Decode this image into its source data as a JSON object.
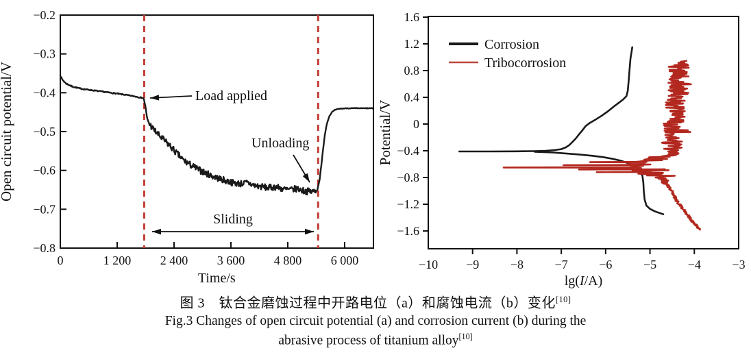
{
  "figure": {
    "caption_zh": "图 3　钛合金磨蚀过程中开路电位（a）和腐蚀电流（b）变化",
    "caption_en_line1": "Fig.3 Changes of open circuit potential (a) and corrosion current (b) during the",
    "caption_en_line2": "abrasive process of titanium alloy",
    "caption_ref": "[10]"
  },
  "colors": {
    "curve_black": "#1a1a1a",
    "curve_red": "#b2281f",
    "dashed_red": "#c23b33",
    "axis": "#111111"
  },
  "chart_data": [
    {
      "id": "a",
      "type": "line",
      "xlabel": "Time/s",
      "ylabel": "Open circuit potential/V",
      "xlim": [
        0,
        6600
      ],
      "ylim": [
        -0.8,
        -0.2
      ],
      "xticks": [
        0,
        1200,
        2400,
        3600,
        4800,
        6000
      ],
      "xtick_labels": [
        "0",
        "1 200",
        "2 400",
        "3 600",
        "4 800",
        "6 000"
      ],
      "yticks": [
        -0.2,
        -0.3,
        -0.4,
        -0.5,
        -0.6,
        -0.7,
        -0.8
      ],
      "ytick_labels": [
        "−0.2",
        "−0.3",
        "−0.4",
        "−0.5",
        "−0.6",
        "−0.7",
        "−0.8"
      ],
      "grid": false,
      "events": {
        "load_applied_time_s": 1770,
        "unloading_time_s": 5440
      },
      "annotations": [
        {
          "name": "load-applied",
          "text": "Load applied"
        },
        {
          "name": "unloading",
          "text": "Unloading"
        },
        {
          "name": "sliding",
          "text": "Sliding"
        }
      ],
      "series": [
        {
          "name": "open-circuit-potential",
          "color": "#1a1a1a",
          "points_time_s_vs_V": [
            [
              0,
              -0.355
            ],
            [
              40,
              -0.366
            ],
            [
              120,
              -0.376
            ],
            [
              250,
              -0.384
            ],
            [
              450,
              -0.39
            ],
            [
              700,
              -0.394
            ],
            [
              1000,
              -0.399
            ],
            [
              1300,
              -0.404
            ],
            [
              1600,
              -0.41
            ],
            [
              1760,
              -0.414
            ],
            [
              1800,
              -0.438
            ],
            [
              1830,
              -0.465
            ],
            [
              1870,
              -0.478
            ],
            [
              1950,
              -0.492
            ],
            [
              2050,
              -0.506
            ],
            [
              2150,
              -0.518
            ],
            [
              2300,
              -0.535
            ],
            [
              2450,
              -0.555
            ],
            [
              2600,
              -0.574
            ],
            [
              2750,
              -0.586
            ],
            [
              2900,
              -0.597
            ],
            [
              3050,
              -0.606
            ],
            [
              3200,
              -0.614
            ],
            [
              3350,
              -0.621
            ],
            [
              3500,
              -0.627
            ],
            [
              3650,
              -0.632
            ],
            [
              3800,
              -0.634
            ],
            [
              3950,
              -0.632
            ],
            [
              4100,
              -0.639
            ],
            [
              4250,
              -0.642
            ],
            [
              4400,
              -0.645
            ],
            [
              4550,
              -0.642
            ],
            [
              4700,
              -0.648
            ],
            [
              4850,
              -0.65
            ],
            [
              5000,
              -0.647
            ],
            [
              5150,
              -0.653
            ],
            [
              5300,
              -0.655
            ],
            [
              5420,
              -0.652
            ],
            [
              5470,
              -0.625
            ],
            [
              5510,
              -0.585
            ],
            [
              5545,
              -0.545
            ],
            [
              5580,
              -0.51
            ],
            [
              5620,
              -0.482
            ],
            [
              5670,
              -0.462
            ],
            [
              5730,
              -0.45
            ],
            [
              5800,
              -0.444
            ],
            [
              5900,
              -0.441
            ],
            [
              6050,
              -0.44
            ],
            [
              6600,
              -0.44
            ]
          ]
        }
      ]
    },
    {
      "id": "b",
      "type": "line",
      "xlabel_parts": {
        "pre": "lg(",
        "var": "I",
        "post": "/A)"
      },
      "ylabel": "Potential/V",
      "xlim": [
        -10,
        -3
      ],
      "ylim": [
        -1.87,
        1.6
      ],
      "xticks": [
        -10,
        -9,
        -8,
        -7,
        -6,
        -5,
        -4,
        -3
      ],
      "xtick_labels": [
        "−10",
        "−9",
        "−8",
        "−7",
        "−6",
        "−5",
        "−4",
        "−3"
      ],
      "yticks": [
        1.6,
        1.2,
        0.8,
        0.4,
        0,
        -0.4,
        -0.8,
        -1.2,
        -1.6
      ],
      "ytick_labels": [
        "1.6",
        "1.2",
        "0.8",
        "0.4",
        "0",
        "−0.4",
        "−0.8",
        "−1.2",
        "−1.6"
      ],
      "grid": false,
      "legend": [
        {
          "label": "Corrosion",
          "color": "#1a1a1a"
        },
        {
          "label": "Tribocorrosion",
          "color": "#b2281f"
        }
      ],
      "series": [
        {
          "name": "corrosion",
          "color": "#1a1a1a",
          "anodic_logI_vs_V": [
            [
              -9.3,
              -0.41
            ],
            [
              -8.6,
              -0.41
            ],
            [
              -8.0,
              -0.408
            ],
            [
              -7.6,
              -0.405
            ],
            [
              -7.35,
              -0.4
            ],
            [
              -7.15,
              -0.39
            ],
            [
              -7.0,
              -0.375
            ],
            [
              -6.9,
              -0.35
            ],
            [
              -6.82,
              -0.315
            ],
            [
              -6.75,
              -0.27
            ],
            [
              -6.68,
              -0.22
            ],
            [
              -6.6,
              -0.155
            ],
            [
              -6.52,
              -0.09
            ],
            [
              -6.45,
              -0.03
            ],
            [
              -6.35,
              0.02
            ],
            [
              -6.22,
              0.07
            ],
            [
              -6.1,
              0.12
            ],
            [
              -5.95,
              0.19
            ],
            [
              -5.82,
              0.26
            ],
            [
              -5.7,
              0.32
            ],
            [
              -5.6,
              0.37
            ],
            [
              -5.53,
              0.42
            ],
            [
              -5.5,
              0.5
            ],
            [
              -5.48,
              0.65
            ],
            [
              -5.46,
              0.82
            ],
            [
              -5.44,
              0.98
            ],
            [
              -5.41,
              1.1
            ],
            [
              -5.4,
              1.15
            ]
          ],
          "cathodic_logI_vs_V": [
            [
              -7.6,
              -0.415
            ],
            [
              -7.2,
              -0.425
            ],
            [
              -6.9,
              -0.44
            ],
            [
              -6.6,
              -0.455
            ],
            [
              -6.3,
              -0.475
            ],
            [
              -6.05,
              -0.495
            ],
            [
              -5.85,
              -0.52
            ],
            [
              -5.65,
              -0.55
            ],
            [
              -5.5,
              -0.585
            ],
            [
              -5.35,
              -0.625
            ],
            [
              -5.25,
              -0.67
            ],
            [
              -5.2,
              -0.72
            ],
            [
              -5.17,
              -0.78
            ],
            [
              -5.15,
              -0.88
            ],
            [
              -5.14,
              -1.0
            ],
            [
              -5.12,
              -1.13
            ],
            [
              -5.08,
              -1.22
            ],
            [
              -5.0,
              -1.27
            ],
            [
              -4.88,
              -1.31
            ],
            [
              -4.7,
              -1.35
            ]
          ]
        },
        {
          "name": "tribocorrosion",
          "color": "#b2281f",
          "ocp_V": -0.65,
          "center_V_vs_logI": [
            [
              -1.58,
              -3.88
            ],
            [
              -1.45,
              -4.05
            ],
            [
              -1.3,
              -4.22
            ],
            [
              -1.15,
              -4.4
            ],
            [
              -1.0,
              -4.52
            ],
            [
              -0.9,
              -4.62
            ],
            [
              -0.82,
              -4.72
            ],
            [
              -0.75,
              -4.85
            ],
            [
              -0.7,
              -5.0
            ],
            [
              -0.65,
              -5.3
            ],
            [
              -0.6,
              -5.35
            ],
            [
              -0.55,
              -4.95
            ],
            [
              -0.5,
              -4.6
            ],
            [
              -0.45,
              -4.55
            ],
            [
              -0.3,
              -4.5
            ],
            [
              -0.1,
              -4.48
            ],
            [
              0.1,
              -4.45
            ],
            [
              0.3,
              -4.42
            ],
            [
              0.5,
              -4.38
            ],
            [
              0.7,
              -4.36
            ],
            [
              0.85,
              -4.34
            ],
            [
              0.95,
              -4.35
            ]
          ],
          "noise_spikes_V_logI": [
            [
              -0.72,
              -6.2
            ],
            [
              -0.68,
              -6.6
            ],
            [
              -0.65,
              -8.3
            ],
            [
              -0.615,
              -6.95
            ],
            [
              -0.57,
              -6.35
            ]
          ]
        }
      ]
    }
  ]
}
